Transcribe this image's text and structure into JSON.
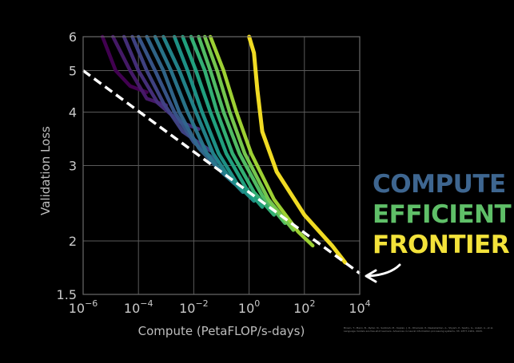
{
  "chart_data": {
    "type": "line",
    "title": "",
    "xlabel": "Compute (PetaFLOP/s-days)",
    "ylabel": "Validation Loss",
    "xscale": "log",
    "yscale": "log",
    "xlim": [
      1e-06,
      10000
    ],
    "ylim": [
      1.5,
      6
    ],
    "grid": true,
    "x_ticks": [
      {
        "value": 1e-06,
        "base": "10",
        "exp": "−6"
      },
      {
        "value": 0.0001,
        "base": "10",
        "exp": "−4"
      },
      {
        "value": 0.01,
        "base": "10",
        "exp": "−2"
      },
      {
        "value": 1,
        "base": "10",
        "exp": "0"
      },
      {
        "value": 100,
        "base": "10",
        "exp": "2"
      },
      {
        "value": 10000,
        "base": "10",
        "exp": "4"
      }
    ],
    "y_ticks": [
      {
        "value": 1.5,
        "label": "1.5"
      },
      {
        "value": 2,
        "label": "2"
      },
      {
        "value": 3,
        "label": "3"
      },
      {
        "value": 4,
        "label": "4"
      },
      {
        "value": 5,
        "label": "5"
      },
      {
        "value": 6,
        "label": "6"
      }
    ],
    "frontier": {
      "style": "dashed",
      "color": "#ffffff",
      "x": [
        1e-06,
        10000
      ],
      "y": [
        5.0,
        1.68
      ]
    },
    "series": [
      {
        "color": "#440154",
        "x": [
          5e-06,
          1.5e-05,
          5e-05,
          0.0002
        ],
        "y": [
          6.0,
          5.0,
          4.6,
          4.45
        ]
      },
      {
        "color": "#481a6c",
        "x": [
          1.2e-05,
          5e-05,
          0.0002,
          0.001
        ],
        "y": [
          6.0,
          5.0,
          4.3,
          4.15
        ]
      },
      {
        "color": "#472f7d",
        "x": [
          3e-05,
          0.0001,
          0.0005,
          0.003,
          0.015
        ],
        "y": [
          6.0,
          5.0,
          4.2,
          3.8,
          3.65
        ]
      },
      {
        "color": "#414487",
        "x": [
          6e-05,
          0.0002,
          0.0008,
          0.004,
          0.02,
          0.04
        ],
        "y": [
          6.0,
          5.0,
          4.2,
          3.6,
          3.35,
          3.25
        ]
      },
      {
        "color": "#39568c",
        "x": [
          0.0001,
          0.0004,
          0.002,
          0.01,
          0.04,
          0.08
        ],
        "y": [
          6.0,
          5.0,
          4.0,
          3.4,
          3.15,
          3.05
        ]
      },
      {
        "color": "#31688e",
        "x": [
          0.0002,
          0.0008,
          0.003,
          0.015,
          0.06,
          0.15
        ],
        "y": [
          6.0,
          5.0,
          4.0,
          3.3,
          3.0,
          2.85
        ]
      },
      {
        "color": "#2a788e",
        "x": [
          0.0004,
          0.0015,
          0.006,
          0.03,
          0.1,
          0.3
        ],
        "y": [
          6.0,
          5.0,
          4.0,
          3.2,
          2.9,
          2.72
        ]
      },
      {
        "color": "#23888e",
        "x": [
          0.0008,
          0.003,
          0.012,
          0.05,
          0.2,
          0.6
        ],
        "y": [
          6.0,
          5.0,
          4.0,
          3.2,
          2.8,
          2.6
        ]
      },
      {
        "color": "#1f988b",
        "x": [
          0.002,
          0.006,
          0.02,
          0.08,
          0.4,
          1.5
        ],
        "y": [
          6.0,
          5.0,
          4.0,
          3.2,
          2.7,
          2.48
        ]
      },
      {
        "color": "#22a884",
        "x": [
          0.004,
          0.012,
          0.04,
          0.15,
          0.8,
          3
        ],
        "y": [
          6.0,
          5.0,
          4.0,
          3.2,
          2.65,
          2.4
        ]
      },
      {
        "color": "#35b779",
        "x": [
          0.008,
          0.025,
          0.07,
          0.25,
          1.5,
          8
        ],
        "y": [
          6.0,
          5.0,
          4.0,
          3.2,
          2.6,
          2.3
        ]
      },
      {
        "color": "#54c568",
        "x": [
          0.015,
          0.04,
          0.12,
          0.45,
          3,
          20
        ],
        "y": [
          6.0,
          5.0,
          4.0,
          3.2,
          2.55,
          2.2
        ]
      },
      {
        "color": "#7ad151",
        "x": [
          0.025,
          0.07,
          0.2,
          0.7,
          5,
          40
        ],
        "y": [
          6.0,
          5.0,
          4.0,
          3.2,
          2.5,
          2.12
        ]
      },
      {
        "color": "#a5db36",
        "x": [
          0.04,
          0.12,
          0.35,
          1.2,
          8,
          60,
          200
        ],
        "y": [
          6.0,
          5.0,
          4.0,
          3.2,
          2.5,
          2.1,
          1.95
        ]
      },
      {
        "color": "#fde725",
        "x": [
          1,
          1.5,
          2,
          3,
          10,
          100,
          1000,
          3000
        ],
        "y": [
          6.0,
          5.5,
          4.5,
          3.6,
          2.9,
          2.3,
          1.95,
          1.78
        ]
      }
    ]
  },
  "annotation": {
    "line1": {
      "text": "COMPUTE",
      "color": "#3e6690"
    },
    "line2": {
      "text": "EFFICIENT",
      "color": "#5fbf68"
    },
    "line3": {
      "text": "FRONTIER",
      "color": "#f3e23a"
    }
  },
  "citation": "Brown, T., Mann, B., Ryder, N., Subbiah, M., Kaplan, J. D., Dhariwal, P., Neelakantan, A., Shyam, P., Sastry, G., Askell, A., et al. Language models are few-shot learners. Advances in neural information processing systems, 33: 1877–1901, 2020."
}
